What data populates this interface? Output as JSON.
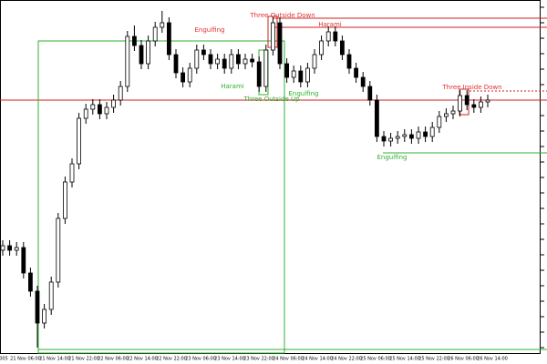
{
  "chart_data": {
    "type": "candlestick",
    "ylim": [
      0,
      400
    ],
    "open": [
      125,
      130,
      125,
      128,
      100,
      80,
      45,
      60,
      90,
      160,
      200,
      220,
      270,
      280,
      285,
      275,
      282,
      290,
      305,
      360,
      350,
      330,
      355,
      370,
      375,
      340,
      320,
      310,
      325,
      345,
      340,
      330,
      335,
      325,
      340,
      330,
      335,
      332,
      305,
      345,
      375,
      330,
      315,
      322,
      310,
      325,
      340,
      355,
      365,
      355,
      340,
      325,
      315,
      305,
      290,
      250,
      245,
      248,
      250,
      252,
      248,
      255,
      250,
      260,
      272,
      275,
      278,
      295,
      285,
      282,
      288
    ],
    "high": [
      136,
      136,
      134,
      134,
      106,
      86,
      66,
      96,
      166,
      206,
      226,
      276,
      286,
      291,
      291,
      288,
      296,
      311,
      366,
      372,
      356,
      361,
      376,
      388,
      381,
      346,
      326,
      331,
      351,
      351,
      346,
      341,
      341,
      346,
      346,
      341,
      341,
      338,
      351,
      381,
      381,
      336,
      328,
      328,
      331,
      346,
      361,
      371,
      371,
      361,
      346,
      331,
      321,
      311,
      296,
      256,
      254,
      256,
      258,
      258,
      261,
      261,
      266,
      278,
      281,
      284,
      301,
      301,
      291,
      294,
      296
    ],
    "low": [
      119,
      119,
      119,
      94,
      74,
      18,
      39,
      54,
      84,
      154,
      194,
      214,
      264,
      274,
      269,
      269,
      276,
      284,
      299,
      344,
      324,
      324,
      349,
      364,
      334,
      314,
      304,
      304,
      319,
      334,
      324,
      324,
      319,
      319,
      324,
      324,
      326,
      299,
      299,
      339,
      324,
      309,
      309,
      304,
      304,
      319,
      334,
      349,
      349,
      334,
      319,
      309,
      299,
      284,
      244,
      239,
      239,
      242,
      244,
      242,
      242,
      244,
      244,
      254,
      266,
      269,
      272,
      279,
      276,
      276,
      282
    ],
    "close": [
      130,
      125,
      128,
      100,
      80,
      45,
      60,
      90,
      160,
      200,
      220,
      270,
      280,
      285,
      275,
      282,
      290,
      305,
      360,
      350,
      330,
      355,
      370,
      375,
      340,
      320,
      310,
      325,
      345,
      340,
      330,
      335,
      325,
      340,
      330,
      335,
      332,
      305,
      345,
      375,
      330,
      315,
      322,
      310,
      325,
      340,
      355,
      365,
      355,
      340,
      325,
      315,
      305,
      290,
      250,
      245,
      248,
      250,
      252,
      248,
      255,
      250,
      260,
      272,
      275,
      278,
      295,
      285,
      282,
      288,
      290
    ],
    "x_tick_labels": [
      "005",
      "21 Nov 06:00",
      "21 Nov 14:00",
      "21 Nov 22:00",
      "22 Nov 06:00",
      "22 Nov 14:00",
      "22 Nov 22:00",
      "23 Nov 06:00",
      "23 Nov 14:00",
      "23 Nov 22:00",
      "24 Nov 06:00",
      "24 Nov 14:00",
      "24 Nov 22:00",
      "25 Nov 06:00",
      "25 Nov 14:00",
      "25 Nov 22:00",
      "26 Nov 06:00",
      "26 Nov 14:00"
    ],
    "levels": [
      {
        "value": 290,
        "color": "#d02020"
      },
      {
        "value": 380,
        "color": "#d02020"
      },
      {
        "value": 370,
        "color": "#d02020"
      },
      {
        "value": 300,
        "color": "#d02020"
      },
      {
        "value": 232,
        "color": "#30b030"
      },
      {
        "value": 16,
        "color": "#30b030"
      }
    ],
    "annotations": [
      {
        "text": "Engulfing",
        "color": "#e03030"
      },
      {
        "text": "Three Outside Down",
        "color": "#e03030"
      },
      {
        "text": "Harami",
        "color": "#e03030"
      },
      {
        "text": "Harami",
        "color": "#30b030"
      },
      {
        "text": "Three Outside Up",
        "color": "#30b030"
      },
      {
        "text": "Engulfing",
        "color": "#30b030"
      },
      {
        "text": "Three Inside Down",
        "color": "#e03030"
      },
      {
        "text": "Engulfing",
        "color": "#30b030"
      }
    ]
  }
}
